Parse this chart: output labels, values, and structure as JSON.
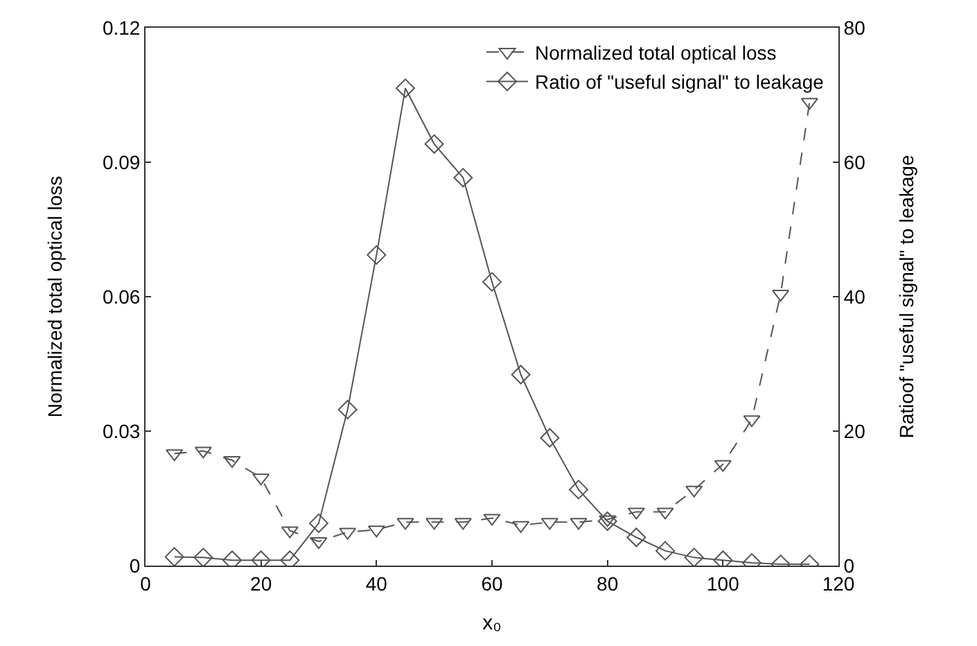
{
  "chart_data": {
    "type": "line",
    "xlabel": "x₀",
    "ylabel": "Normalized total optical loss",
    "y2label": "Ratioof \"useful signal\" to leakage",
    "x": [
      5,
      10,
      15,
      20,
      25,
      30,
      35,
      40,
      45,
      50,
      55,
      60,
      65,
      70,
      75,
      80,
      85,
      90,
      95,
      100,
      105,
      110,
      115
    ],
    "series": [
      {
        "name": "Normalized total optical loss",
        "color": "#555555",
        "marker": "triangle",
        "line_style": "dashed",
        "values": [
          0.025,
          0.0256,
          0.0235,
          0.0196,
          0.0078,
          0.0054,
          0.0075,
          0.008,
          0.0097,
          0.0097,
          0.0097,
          0.0106,
          0.009,
          0.0097,
          0.0097,
          0.0103,
          0.012,
          0.012,
          0.0169,
          0.0226,
          0.0326,
          0.0606,
          0.1034
        ]
      },
      {
        "name": "Ratio of \"useful signal\" to leakage",
        "color": "#555555",
        "marker": "diamond",
        "line_style": "solid",
        "axis": "y2",
        "values": [
          1.3,
          1.2,
          0.8,
          0.8,
          0.8,
          6.3,
          23.2,
          46.2,
          71,
          62.7,
          57.7,
          42.2,
          28.4,
          19,
          11.3,
          6.6,
          4.2,
          2.2,
          1.2,
          0.8,
          0.4,
          0.2,
          0.2
        ]
      }
    ],
    "xlim": [
      0,
      120
    ],
    "xticks": [
      0,
      20,
      40,
      60,
      80,
      100,
      120
    ],
    "ylim": [
      0,
      0.12
    ],
    "yticks": [
      0,
      0.03,
      0.06,
      0.09,
      0.12
    ],
    "y2lim": [
      0,
      80
    ],
    "y2ticks": [
      0,
      20,
      40,
      60,
      80
    ],
    "legend": "top right"
  }
}
